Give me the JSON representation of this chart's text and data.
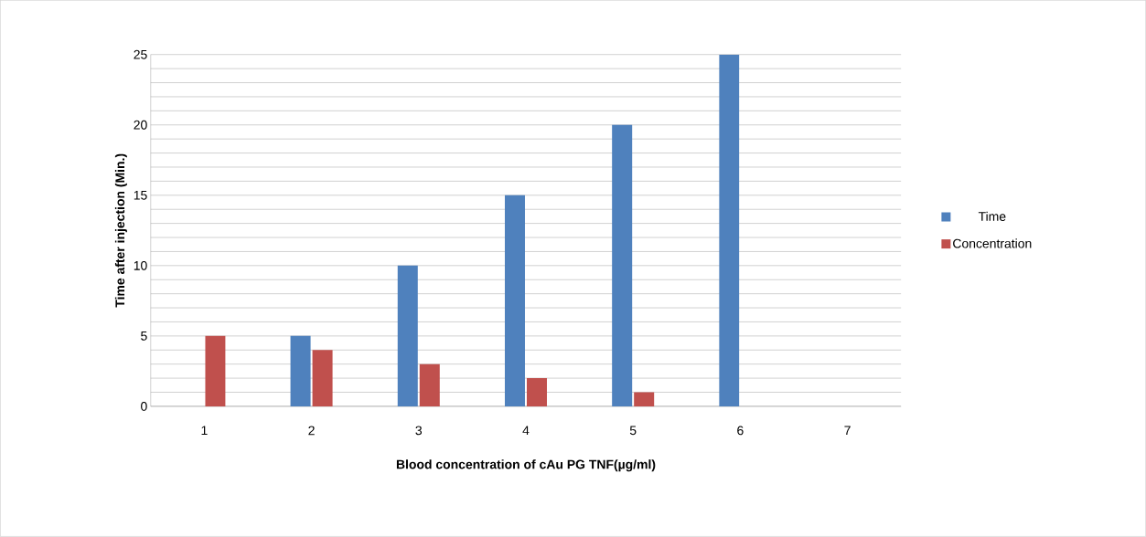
{
  "chart_data": {
    "type": "bar",
    "xlabel": "Blood concentration of cAu PG TNF(µg/ml)",
    "ylabel": "Time after injection (Min.)",
    "categories": [
      "1",
      "2",
      "3",
      "4",
      "5",
      "6",
      "7"
    ],
    "series": [
      {
        "name": "Time",
        "color": "#4f81bd",
        "values": [
          0,
          5,
          10,
          15,
          20,
          25,
          null
        ]
      },
      {
        "name": "Concentration",
        "color": "#c0504d",
        "values": [
          5,
          4,
          3,
          2,
          1,
          0,
          null
        ]
      }
    ],
    "ylim": [
      0,
      25
    ],
    "yticks": [
      0,
      {
        "value": 1,
        "label": null
      },
      {
        "value": 2,
        "label": null
      },
      {
        "value": 3,
        "label": null
      },
      {
        "value": 4,
        "label": null
      },
      5,
      {
        "value": 6,
        "label": null
      },
      {
        "value": 7,
        "label": null
      },
      {
        "value": 8,
        "label": null
      },
      {
        "value": 9,
        "label": null
      },
      10,
      {
        "value": 11,
        "label": null
      },
      {
        "value": 12,
        "label": null
      },
      {
        "value": 13,
        "label": null
      },
      {
        "value": 14,
        "label": null
      },
      15,
      {
        "value": 16,
        "label": null
      },
      {
        "value": 17,
        "label": null
      },
      {
        "value": 18,
        "label": null
      },
      {
        "value": 19,
        "label": null
      },
      20,
      {
        "value": 21,
        "label": null
      },
      {
        "value": 22,
        "label": null
      },
      {
        "value": 23,
        "label": null
      },
      {
        "value": 24,
        "label": null
      },
      25
    ],
    "grid": "y",
    "legend": "right"
  }
}
